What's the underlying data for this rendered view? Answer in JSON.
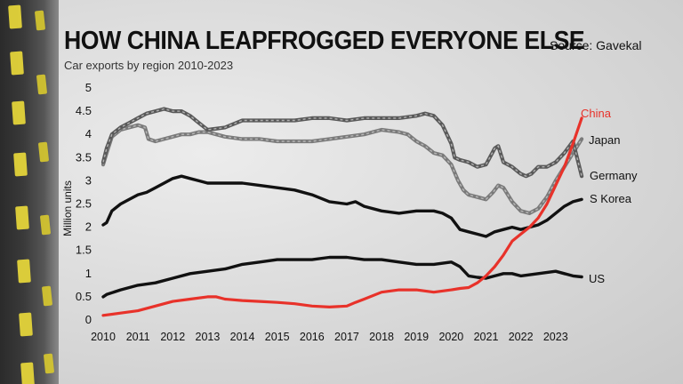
{
  "header": {
    "title": "HOW CHINA LEAPFROGGED EVERYONE ELSE",
    "subtitle": "Car exports by region 2010-2023",
    "source": "Source: Gavekal"
  },
  "chart_data": {
    "type": "line",
    "title": "HOW CHINA LEAPFROGGED EVERYONE ELSE",
    "subtitle": "Car exports by region 2010-2023",
    "xlabel": "",
    "ylabel": "Million units",
    "xlim": [
      2010,
      2023.9
    ],
    "ylim": [
      0,
      5
    ],
    "xticks": [
      "2010",
      "2011",
      "2012",
      "2013",
      "2014",
      "2015",
      "2016",
      "2017",
      "2018",
      "2019",
      "2020",
      "2021",
      "2022",
      "2023"
    ],
    "yticks": [
      "0",
      "0.5",
      "1",
      "1.5",
      "2",
      "2.5",
      "3",
      "3.5",
      "4",
      "4.5",
      "5"
    ],
    "grid": false,
    "legend": "inline-labels-right",
    "series": [
      {
        "name": "Japan",
        "color": "#7a7a7a",
        "style": "dashed",
        "x": [
          2010,
          2010.1,
          2010.25,
          2010.5,
          2010.75,
          2011,
          2011.2,
          2011.3,
          2011.5,
          2011.75,
          2012,
          2012.25,
          2012.5,
          2012.75,
          2013,
          2013.25,
          2013.5,
          2014,
          2014.5,
          2015,
          2015.5,
          2016,
          2016.5,
          2017,
          2017.5,
          2018,
          2018.5,
          2018.75,
          2019,
          2019.25,
          2019.5,
          2019.75,
          2020,
          2020.2,
          2020.35,
          2020.5,
          2020.75,
          2021,
          2021.2,
          2021.35,
          2021.5,
          2021.75,
          2022,
          2022.25,
          2022.5,
          2022.75,
          2023,
          2023.25,
          2023.5,
          2023.75
        ],
        "y": [
          3.35,
          3.6,
          3.95,
          4.1,
          4.15,
          4.2,
          4.15,
          3.9,
          3.85,
          3.9,
          3.95,
          4.0,
          4.0,
          4.05,
          4.05,
          4.0,
          3.95,
          3.9,
          3.9,
          3.85,
          3.85,
          3.85,
          3.9,
          3.95,
          4.0,
          4.1,
          4.05,
          4.0,
          3.85,
          3.75,
          3.6,
          3.55,
          3.35,
          3.0,
          2.8,
          2.7,
          2.65,
          2.6,
          2.75,
          2.9,
          2.85,
          2.55,
          2.35,
          2.3,
          2.4,
          2.65,
          3.0,
          3.3,
          3.6,
          3.9
        ]
      },
      {
        "name": "Germany",
        "color": "#595959",
        "style": "dashed",
        "x": [
          2010,
          2010.1,
          2010.25,
          2010.5,
          2010.75,
          2011,
          2011.25,
          2011.5,
          2011.75,
          2012,
          2012.25,
          2012.5,
          2012.75,
          2013,
          2013.5,
          2014,
          2014.5,
          2015,
          2015.5,
          2016,
          2016.5,
          2017,
          2017.5,
          2018,
          2018.5,
          2019,
          2019.25,
          2019.5,
          2019.75,
          2020,
          2020.1,
          2020.25,
          2020.5,
          2020.75,
          2021,
          2021.25,
          2021.35,
          2021.5,
          2021.75,
          2022,
          2022.15,
          2022.3,
          2022.5,
          2022.75,
          2023,
          2023.25,
          2023.5,
          2023.75
        ],
        "y": [
          3.4,
          3.7,
          4.0,
          4.15,
          4.25,
          4.35,
          4.45,
          4.5,
          4.55,
          4.5,
          4.5,
          4.4,
          4.25,
          4.1,
          4.15,
          4.3,
          4.3,
          4.3,
          4.3,
          4.35,
          4.35,
          4.3,
          4.35,
          4.35,
          4.35,
          4.4,
          4.45,
          4.4,
          4.2,
          3.8,
          3.5,
          3.45,
          3.4,
          3.3,
          3.35,
          3.7,
          3.75,
          3.4,
          3.3,
          3.15,
          3.1,
          3.15,
          3.3,
          3.3,
          3.4,
          3.6,
          3.85,
          3.1
        ]
      },
      {
        "name": "S Korea",
        "color": "#111111",
        "style": "solid",
        "x": [
          2010,
          2010.1,
          2010.25,
          2010.5,
          2010.75,
          2011,
          2011.25,
          2011.5,
          2011.75,
          2012,
          2012.25,
          2012.5,
          2012.75,
          2013,
          2013.5,
          2014,
          2014.5,
          2015,
          2015.5,
          2016,
          2016.5,
          2017,
          2017.25,
          2017.5,
          2018,
          2018.5,
          2019,
          2019.5,
          2019.75,
          2020,
          2020.25,
          2020.5,
          2020.75,
          2021,
          2021.25,
          2021.5,
          2021.75,
          2022,
          2022.25,
          2022.5,
          2022.75,
          2023,
          2023.25,
          2023.5,
          2023.75
        ],
        "y": [
          2.05,
          2.1,
          2.35,
          2.5,
          2.6,
          2.7,
          2.75,
          2.85,
          2.95,
          3.05,
          3.1,
          3.05,
          3.0,
          2.95,
          2.95,
          2.95,
          2.9,
          2.85,
          2.8,
          2.7,
          2.55,
          2.5,
          2.55,
          2.45,
          2.35,
          2.3,
          2.35,
          2.35,
          2.3,
          2.2,
          1.95,
          1.9,
          1.85,
          1.8,
          1.9,
          1.95,
          2.0,
          1.95,
          2.0,
          2.05,
          2.15,
          2.3,
          2.45,
          2.55,
          2.6
        ]
      },
      {
        "name": "US",
        "color": "#111111",
        "style": "solid",
        "x": [
          2010,
          2010.1,
          2010.5,
          2011,
          2011.5,
          2012,
          2012.5,
          2013,
          2013.5,
          2014,
          2014.5,
          2015,
          2015.5,
          2016,
          2016.5,
          2017,
          2017.5,
          2018,
          2018.5,
          2019,
          2019.5,
          2020,
          2020.25,
          2020.5,
          2020.75,
          2021,
          2021.25,
          2021.5,
          2021.75,
          2022,
          2022.5,
          2023,
          2023.5,
          2023.75
        ],
        "y": [
          0.5,
          0.55,
          0.65,
          0.75,
          0.8,
          0.9,
          1.0,
          1.05,
          1.1,
          1.2,
          1.25,
          1.3,
          1.3,
          1.3,
          1.35,
          1.35,
          1.3,
          1.3,
          1.25,
          1.2,
          1.2,
          1.25,
          1.15,
          0.95,
          0.92,
          0.9,
          0.95,
          1.0,
          1.0,
          0.95,
          1.0,
          1.05,
          0.95,
          0.93
        ]
      },
      {
        "name": "China",
        "color": "#e8322a",
        "style": "solid",
        "x": [
          2010,
          2010.5,
          2011,
          2011.5,
          2012,
          2012.5,
          2013,
          2013.25,
          2013.5,
          2014,
          2014.5,
          2015,
          2015.5,
          2016,
          2016.5,
          2017,
          2017.25,
          2017.5,
          2018,
          2018.5,
          2019,
          2019.5,
          2020,
          2020.25,
          2020.5,
          2020.75,
          2021,
          2021.25,
          2021.5,
          2021.75,
          2022,
          2022.25,
          2022.5,
          2022.75,
          2023,
          2023.25,
          2023.5,
          2023.75
        ],
        "y": [
          0.1,
          0.15,
          0.2,
          0.3,
          0.4,
          0.45,
          0.5,
          0.5,
          0.45,
          0.42,
          0.4,
          0.38,
          0.35,
          0.3,
          0.28,
          0.3,
          0.38,
          0.45,
          0.6,
          0.65,
          0.65,
          0.6,
          0.65,
          0.68,
          0.7,
          0.8,
          0.95,
          1.15,
          1.4,
          1.7,
          1.85,
          2.0,
          2.2,
          2.5,
          2.9,
          3.3,
          3.8,
          4.35
        ]
      }
    ]
  }
}
